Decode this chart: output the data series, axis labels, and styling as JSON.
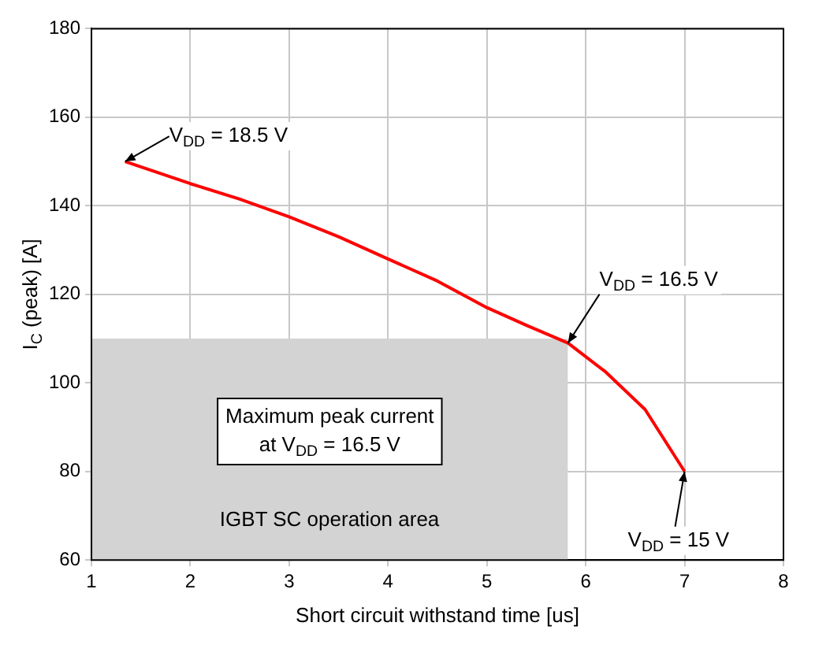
{
  "chart_data": {
    "type": "line",
    "xlabel": "Short circuit withstand time [us]",
    "ylabel": "I$_{C}$ (peak) [A]",
    "series": [
      {
        "type": "area",
        "color": "#d3d3d3",
        "x": [
          1,
          5.82
        ],
        "values": [
          110,
          110
        ]
      },
      {
        "color": "#ff0000",
        "x": [
          1.34,
          2,
          2.5,
          3,
          3.5,
          4,
          4.5,
          5,
          5.4,
          5.82,
          6.2,
          6.6,
          7.0
        ],
        "values": [
          150,
          145,
          141.5,
          137.5,
          133,
          128,
          123,
          117,
          113,
          109,
          102.5,
          94,
          80
        ]
      }
    ],
    "xlim": [
      1,
      8
    ],
    "xticks": [
      1,
      2,
      3,
      4,
      5,
      6,
      7,
      8
    ],
    "ylim": [
      60,
      180
    ],
    "yticks": [
      60,
      80,
      100,
      120,
      140,
      160,
      180
    ],
    "grid": true,
    "annotations": [
      {
        "text": "V$_{DD}$ = 18.5 V",
        "x": 1.34,
        "y": 150
      },
      {
        "text": "V$_{DD}$ = 16.5 V",
        "x": 5.82,
        "y": 109
      },
      {
        "text": "V$_{DD}$ = 15 V",
        "x": 7.0,
        "y": 80
      },
      "Maximum peak current\nat V$_{DD}$ = 16.5 V",
      "IGBT SC operation area"
    ]
  }
}
